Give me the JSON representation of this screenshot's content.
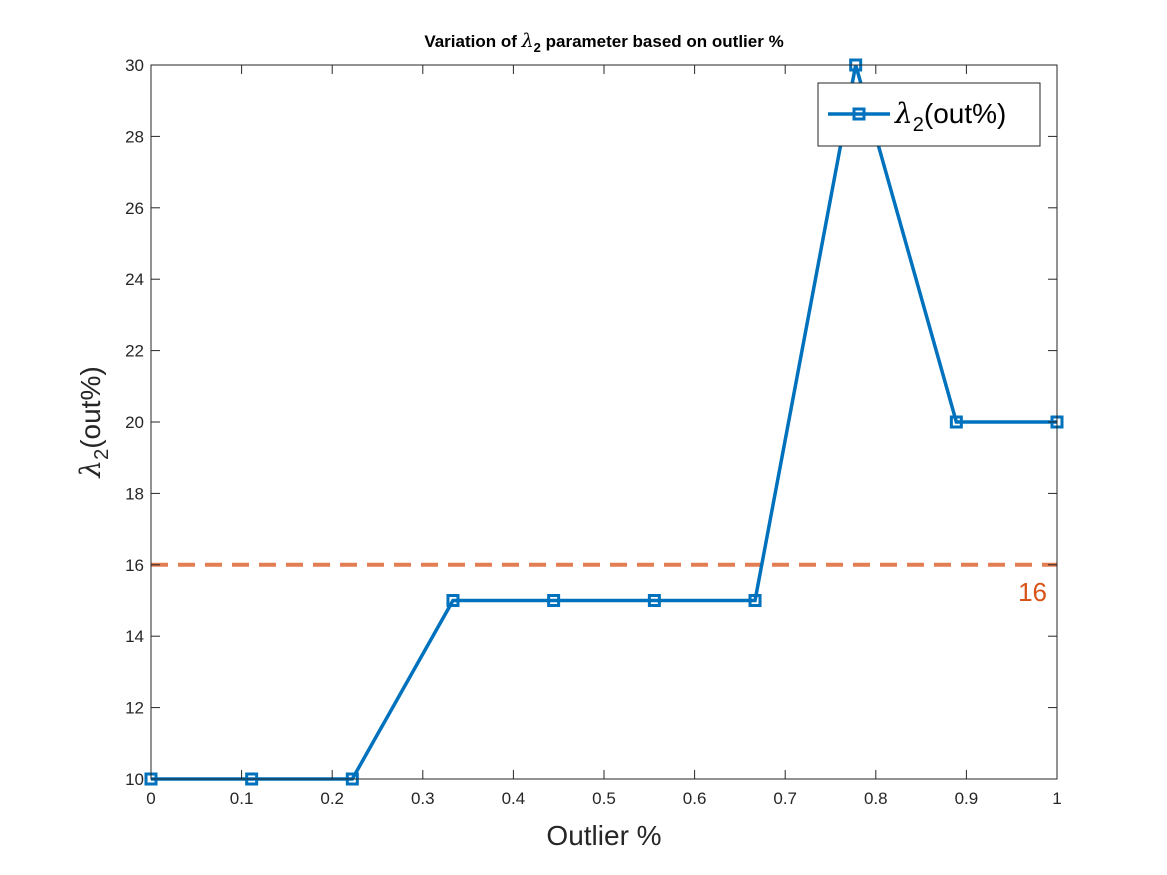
{
  "chart_data": {
    "type": "line",
    "title": {
      "prefix": "Variation of ",
      "symbol": "λ",
      "subscript": "2",
      "suffix": " parameter based on outlier %"
    },
    "xlabel": "Outlier %",
    "ylabel": {
      "symbol": "λ",
      "subscript": "2",
      "suffix": "(out%)"
    },
    "xlim": [
      0,
      1
    ],
    "ylim": [
      10,
      30
    ],
    "x_ticks": [
      0,
      0.1,
      0.2,
      0.3,
      0.4,
      0.5,
      0.6,
      0.7,
      0.8,
      0.9,
      1
    ],
    "x_tick_labels": [
      "0",
      "0.1",
      "0.2",
      "0.3",
      "0.4",
      "0.5",
      "0.6",
      "0.7",
      "0.8",
      "0.9",
      "1"
    ],
    "y_ticks": [
      10,
      12,
      14,
      16,
      18,
      20,
      22,
      24,
      26,
      28,
      30
    ],
    "y_tick_labels": [
      "10",
      "12",
      "14",
      "16",
      "18",
      "20",
      "22",
      "24",
      "26",
      "28",
      "30"
    ],
    "grid": false,
    "series": [
      {
        "name": {
          "symbol": "λ",
          "subscript": "2",
          "suffix": "(out%)"
        },
        "color": "#0072BD",
        "marker": "square",
        "x": [
          0,
          0.1111,
          0.2222,
          0.3333,
          0.4444,
          0.5556,
          0.6667,
          0.7778,
          0.8889,
          1.0
        ],
        "y": [
          10,
          10,
          10,
          15,
          15,
          15,
          15,
          30,
          20,
          20
        ]
      }
    ],
    "reference_line": {
      "y": 16,
      "label": "16",
      "color": "#D95319",
      "style": "dashed"
    },
    "legend": {
      "position": "top-right"
    }
  }
}
